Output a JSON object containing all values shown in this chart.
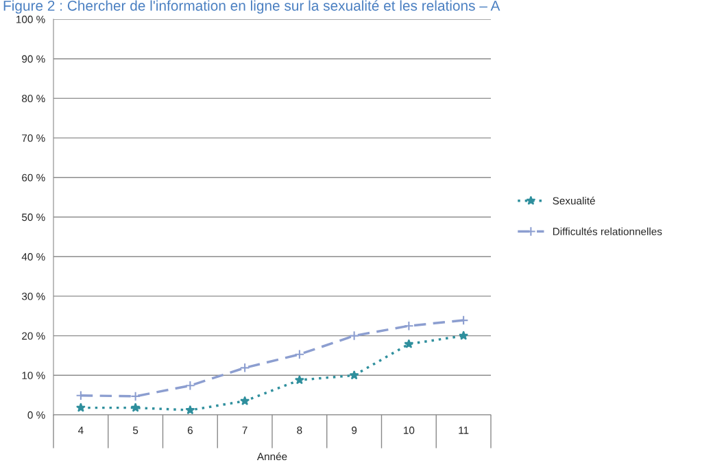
{
  "chart_data": {
    "type": "line",
    "title": "Figure 2 : Chercher de l'information en ligne sur la sexualité et les relations – A",
    "categories": [
      "4",
      "5",
      "6",
      "7",
      "8",
      "9",
      "10",
      "11"
    ],
    "xlabel": "Année",
    "series": [
      {
        "name": "Sexualité",
        "color": "#2f8f9d",
        "marker": "star",
        "line_style": "dotted",
        "values": [
          1.8,
          1.8,
          1.2,
          3.5,
          8.8,
          10,
          17.9,
          20
        ]
      },
      {
        "name": "Difficultés relationnelles",
        "color": "#8c9ed0",
        "marker": "cross",
        "line_style": "dashed",
        "values": [
          4.9,
          4.7,
          7.4,
          11.9,
          15.3,
          20,
          22.5,
          23.9
        ]
      }
    ],
    "ylim": [
      0,
      100
    ],
    "yticks": [
      {
        "value": 0,
        "label": "0 %"
      },
      {
        "value": 10,
        "label": "10 %"
      },
      {
        "value": 20,
        "label": "20 %"
      },
      {
        "value": 30,
        "label": "30 %"
      },
      {
        "value": 40,
        "label": "40 %"
      },
      {
        "value": 50,
        "label": "50 %"
      },
      {
        "value": 60,
        "label": "60 %"
      },
      {
        "value": 70,
        "label": "70 %"
      },
      {
        "value": 80,
        "label": "80 %"
      },
      {
        "value": 90,
        "label": "90 %"
      },
      {
        "value": 100,
        "label": "100 %"
      }
    ],
    "grid": "y",
    "legend": "right"
  }
}
